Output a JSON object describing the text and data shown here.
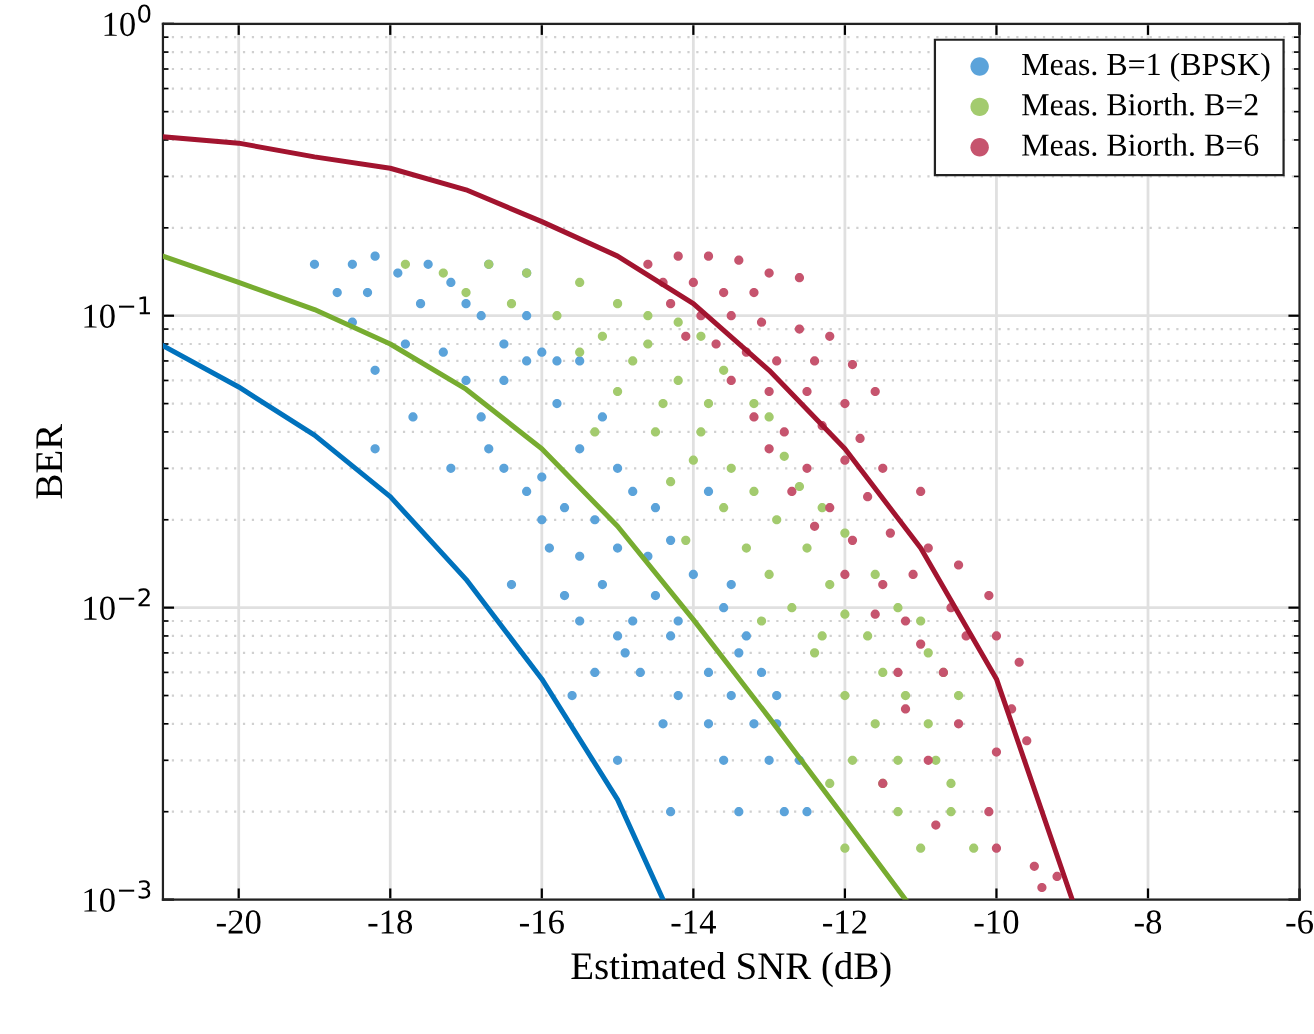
{
  "chart_data": {
    "type": "scatter",
    "xlabel": "Estimated SNR (dB)",
    "ylabel": "BER",
    "log": "y",
    "grid": true,
    "legend": "top right",
    "xlim": [
      -21,
      -6
    ],
    "xticks": [
      -20,
      -18,
      -16,
      -14,
      -12,
      -10,
      -8,
      -6
    ],
    "ylim": [
      0.001,
      1
    ],
    "yticks": [
      {
        "value": 0.001,
        "label": "10$^{−3}$"
      },
      {
        "value": 0.01,
        "label": "10$^{−2}$"
      },
      {
        "value": 0.1,
        "label": "10$^{−1}$"
      },
      {
        "value": 1,
        "label": "10$^{0}$"
      }
    ],
    "series": [
      {
        "name": "Meas. B=1 (BPSK)",
        "color": "#5ba3da",
        "marker": "circle",
        "x": [
          -19,
          -18.5,
          -18.2,
          -17.9,
          -17.5,
          -17.2,
          -16.7,
          -16.2,
          -18.7,
          -18.3,
          -17.6,
          -17.0,
          -16.8,
          -16.2,
          -18.5,
          -17.8,
          -17.3,
          -16.5,
          -16.0,
          -15.8,
          -18.2,
          -17.0,
          -16.5,
          -16.2,
          -15.5,
          -17.7,
          -16.8,
          -15.8,
          -15.2,
          -18.2,
          -16.7,
          -16.5,
          -17.2,
          -16.0,
          -15.5,
          -16.2,
          -15.0,
          -14.8,
          -16.0,
          -15.7,
          -15.3,
          -14.5,
          -13.8,
          -15.9,
          -15.5,
          -15.0,
          -14.6,
          -14.3,
          -16.4,
          -15.7,
          -15.2,
          -14.5,
          -14.0,
          -13.5,
          -15.5,
          -14.8,
          -14.2,
          -13.6,
          -15.0,
          -14.3,
          -13.3,
          -14.9,
          -14.7,
          -13.8,
          -13.1,
          -13.4,
          -15.3,
          -15.6,
          -14.2,
          -13.5,
          -12.9,
          -14.4,
          -13.8,
          -13.2,
          -12.9,
          -15.0,
          -13.6,
          -13.0,
          -12.6,
          -14.3,
          -13.4,
          -12.8,
          -12.5
        ],
        "values": [
          0.15,
          0.15,
          0.16,
          0.14,
          0.15,
          0.13,
          0.15,
          0.14,
          0.12,
          0.12,
          0.11,
          0.11,
          0.1,
          0.1,
          0.095,
          0.08,
          0.075,
          0.08,
          0.075,
          0.07,
          0.065,
          0.06,
          0.06,
          0.07,
          0.07,
          0.045,
          0.045,
          0.05,
          0.045,
          0.035,
          0.035,
          0.03,
          0.03,
          0.028,
          0.035,
          0.025,
          0.03,
          0.025,
          0.02,
          0.022,
          0.02,
          0.022,
          0.025,
          0.016,
          0.015,
          0.016,
          0.015,
          0.017,
          0.012,
          0.011,
          0.012,
          0.011,
          0.013,
          0.012,
          0.009,
          0.009,
          0.009,
          0.01,
          0.008,
          0.008,
          0.008,
          0.007,
          0.006,
          0.006,
          0.006,
          0.007,
          0.006,
          0.005,
          0.005,
          0.005,
          0.005,
          0.004,
          0.004,
          0.004,
          0.004,
          0.003,
          0.003,
          0.003,
          0.003,
          0.002,
          0.002,
          0.002,
          0.002
        ]
      },
      {
        "name": "Meas. Biorth. B=2",
        "color": "#a3cb6e",
        "marker": "circle",
        "x": [
          -17.8,
          -17.3,
          -16.7,
          -16.2,
          -15.5,
          -17.0,
          -16.4,
          -15.8,
          -15.0,
          -14.6,
          -14.2,
          -15.2,
          -14.6,
          -13.9,
          -15.5,
          -14.8,
          -14.2,
          -13.6,
          -15.0,
          -14.4,
          -13.8,
          -13.2,
          -15.3,
          -14.5,
          -13.9,
          -13.0,
          -14.0,
          -13.5,
          -12.8,
          -14.3,
          -13.2,
          -12.6,
          -13.6,
          -12.9,
          -12.3,
          -14.1,
          -13.3,
          -12.5,
          -12.0,
          -13.0,
          -12.2,
          -11.6,
          -12.7,
          -12.0,
          -11.3,
          -13.1,
          -12.3,
          -11.7,
          -11.0,
          -12.4,
          -11.5,
          -10.9,
          -12.0,
          -11.2,
          -10.7,
          -11.6,
          -10.9,
          -10.5,
          -11.9,
          -11.3,
          -10.8,
          -12.2,
          -11.5,
          -10.6,
          -11.3,
          -10.6,
          -12.0,
          -11.0,
          -10.3
        ],
        "values": [
          0.15,
          0.14,
          0.15,
          0.14,
          0.13,
          0.12,
          0.11,
          0.1,
          0.11,
          0.1,
          0.095,
          0.085,
          0.08,
          0.085,
          0.075,
          0.07,
          0.06,
          0.065,
          0.055,
          0.05,
          0.05,
          0.05,
          0.04,
          0.04,
          0.04,
          0.045,
          0.032,
          0.03,
          0.033,
          0.027,
          0.025,
          0.026,
          0.022,
          0.02,
          0.022,
          0.017,
          0.016,
          0.016,
          0.018,
          0.013,
          0.012,
          0.013,
          0.01,
          0.0095,
          0.01,
          0.009,
          0.008,
          0.008,
          0.009,
          0.007,
          0.006,
          0.007,
          0.005,
          0.005,
          0.006,
          0.004,
          0.004,
          0.005,
          0.003,
          0.003,
          0.003,
          0.0025,
          0.0025,
          0.0025,
          0.002,
          0.002,
          0.0015,
          0.0015,
          0.0015
        ]
      },
      {
        "name": "Meas. Biorth. B=6",
        "color": "#c6546e",
        "marker": "circle",
        "x": [
          -14.6,
          -14.2,
          -13.8,
          -13.4,
          -13.0,
          -12.6,
          -14.4,
          -14.0,
          -13.6,
          -13.2,
          -14.3,
          -13.9,
          -13.5,
          -13.1,
          -12.6,
          -12.2,
          -14.1,
          -13.7,
          -13.3,
          -12.9,
          -12.4,
          -11.9,
          -13.5,
          -13.0,
          -12.5,
          -12.0,
          -11.6,
          -13.2,
          -12.8,
          -12.3,
          -11.8,
          -13.0,
          -12.5,
          -12.0,
          -11.5,
          -12.7,
          -12.2,
          -11.7,
          -11.0,
          -12.4,
          -11.9,
          -11.4,
          -10.9,
          -12.0,
          -11.5,
          -11.1,
          -10.5,
          -11.6,
          -11.2,
          -10.6,
          -10.1,
          -11.0,
          -10.4,
          -10.0,
          -11.3,
          -10.7,
          -9.7,
          -11.2,
          -10.5,
          -9.8,
          -10.9,
          -10.0,
          -9.6,
          -11.5,
          -10.1,
          -10.8,
          -10.0,
          -9.5,
          -9.4,
          -9.2
        ],
        "values": [
          0.15,
          0.16,
          0.16,
          0.155,
          0.14,
          0.135,
          0.13,
          0.13,
          0.12,
          0.12,
          0.11,
          0.1,
          0.1,
          0.095,
          0.09,
          0.085,
          0.085,
          0.08,
          0.075,
          0.07,
          0.07,
          0.068,
          0.06,
          0.055,
          0.055,
          0.05,
          0.055,
          0.045,
          0.04,
          0.042,
          0.038,
          0.035,
          0.03,
          0.032,
          0.03,
          0.025,
          0.022,
          0.024,
          0.025,
          0.019,
          0.017,
          0.018,
          0.016,
          0.013,
          0.012,
          0.013,
          0.014,
          0.0095,
          0.009,
          0.01,
          0.011,
          0.0075,
          0.008,
          0.008,
          0.006,
          0.006,
          0.0065,
          0.0045,
          0.004,
          0.0045,
          0.003,
          0.0032,
          0.0035,
          0.0025,
          0.002,
          0.0018,
          0.0015,
          0.0013,
          0.0011,
          0.0012
        ]
      },
      {
        "type": "line",
        "marker": "none",
        "color": "#0072bd",
        "x": [
          -21,
          -20,
          -19,
          -18,
          -17,
          -16,
          -15,
          -14.4
        ],
        "values": [
          0.079,
          0.057,
          0.039,
          0.024,
          0.0125,
          0.0057,
          0.0022,
          0.001
        ]
      },
      {
        "type": "line",
        "marker": "none",
        "color": "#77ac30",
        "x": [
          -21,
          -20,
          -19,
          -18,
          -17,
          -16,
          -15,
          -14,
          -13,
          -12,
          -11.2
        ],
        "values": [
          0.16,
          0.13,
          0.105,
          0.08,
          0.056,
          0.035,
          0.019,
          0.0091,
          0.0042,
          0.0019,
          0.001
        ]
      },
      {
        "type": "line",
        "marker": "none",
        "color": "#a2142f",
        "x": [
          -21,
          -20,
          -19,
          -18,
          -17,
          -16,
          -15,
          -14,
          -13,
          -12,
          -11,
          -10,
          -9
        ],
        "values": [
          0.41,
          0.39,
          0.35,
          0.32,
          0.27,
          0.21,
          0.16,
          0.11,
          0.065,
          0.035,
          0.016,
          0.0057,
          0.001
        ]
      }
    ]
  }
}
